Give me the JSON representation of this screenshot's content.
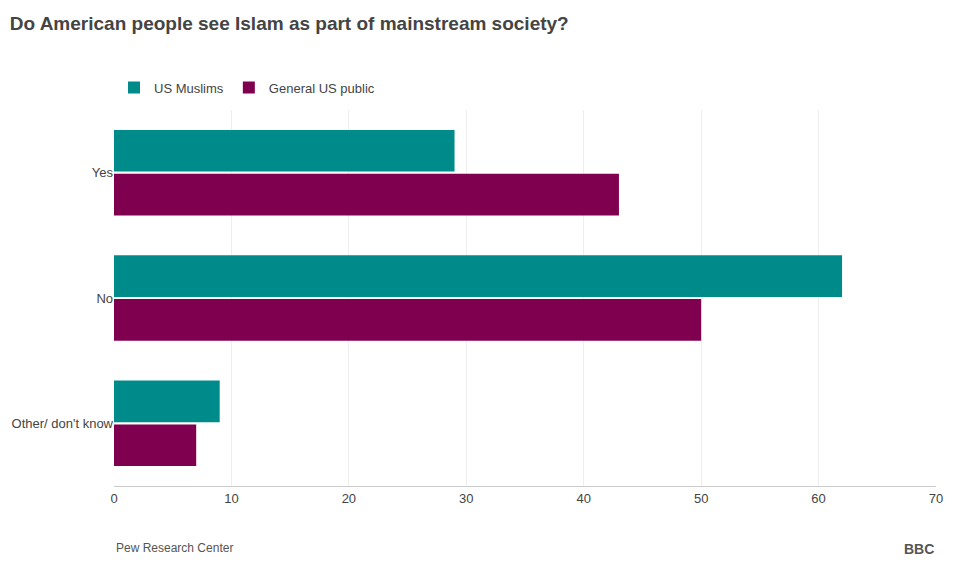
{
  "chart_data": {
    "type": "bar",
    "orientation": "horizontal",
    "title": "Do American people see Islam as part of mainstream society?",
    "categories": [
      "Yes",
      "No",
      "Other/ don't know"
    ],
    "series": [
      {
        "name": "US Muslims",
        "color": "#008B8B",
        "values": [
          29,
          62,
          9
        ]
      },
      {
        "name": "General US public",
        "color": "#800050",
        "values": [
          43,
          50,
          7
        ]
      }
    ],
    "xlim": [
      0,
      70
    ],
    "xticks": [
      0,
      10,
      20,
      30,
      40,
      50,
      60,
      70
    ],
    "grid": true,
    "legend": "top",
    "annotations": [
      "Pew Research Center",
      "BBC"
    ]
  }
}
